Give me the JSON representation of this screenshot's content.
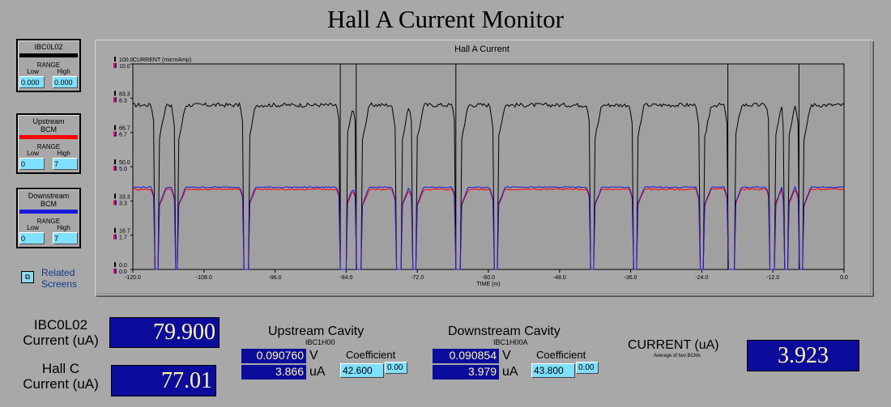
{
  "title": "Hall A Current Monitor",
  "legend": [
    {
      "name": "IBC0L02",
      "color": "#000000",
      "range_label": "RANGE",
      "low_label": "Low",
      "high_label": "High",
      "low": "0.000",
      "high": "0.000"
    },
    {
      "name": "Upstream\nBCM",
      "color": "#ff0000",
      "range_label": "RANGE",
      "low_label": "Low",
      "high_label": "High",
      "low": "0",
      "high": "7"
    },
    {
      "name": "Downstream\nBCM",
      "color": "#1a1adc",
      "range_label": "RANGE",
      "low_label": "Low",
      "high_label": "High",
      "low": "0",
      "high": "7"
    }
  ],
  "related_screens": {
    "icon": "related-screens-icon",
    "label": "Related\nScreens"
  },
  "readouts": {
    "ibc_label": "IBC0L02\nCurrent (uA)",
    "ibc_value": "79.900",
    "hallc_label": "Hall C\nCurrent (uA)",
    "hallc_value": "77.01",
    "upstream": {
      "title": "Upstream Cavity",
      "sub": "IBC1H00",
      "volt": "0.090760",
      "volt_unit": "V",
      "amp": "3.866",
      "amp_unit": "uA",
      "coef_label": "Coefficient",
      "coef": "42.600",
      "offset": "0.00"
    },
    "downstream": {
      "title": "Downstream Cavity",
      "sub": "IBC1H00A",
      "volt": "0.090854",
      "volt_unit": "V",
      "amp": "3.979",
      "amp_unit": "uA",
      "coef_label": "Coefficient",
      "coef": "43.800",
      "offset": "0.00"
    },
    "avg_label": "CURRENT (uA)",
    "avg_sub": "Average of two BCMs",
    "avg_value": "3.923"
  },
  "chart_data": {
    "type": "line",
    "title": "Hall A Current",
    "ylabel": "CURRENT (microAmp)",
    "xlabel": "TIME (m)",
    "xlim": [
      -120,
      0
    ],
    "ylim": [
      0,
      100
    ],
    "y_ticks_black": [
      "0.0",
      "16.7",
      "33.3",
      "50.0",
      "66.7",
      "83.3",
      "100.0"
    ],
    "y_ticks_colored": [
      "0.0",
      "1.7",
      "3.3",
      "5.0",
      "6.7",
      "8.3",
      "10.0"
    ],
    "x_ticks": [
      "-120.0",
      "-108.0",
      "-96.0",
      "-84.0",
      "-72.0",
      "-60.0",
      "-48.0",
      "-36.0",
      "-24.0",
      "-12.0",
      "0.0"
    ],
    "x_tick_values": [
      -120,
      -108,
      -96,
      -84,
      -72,
      -60,
      -48,
      -36,
      -24,
      -12,
      0
    ],
    "trips": [
      {
        "start": -116.3,
        "end": -115.6,
        "spike": false
      },
      {
        "start": -112.9,
        "end": -112.3,
        "spike": false
      },
      {
        "start": -101.3,
        "end": -100.5,
        "spike": false
      },
      {
        "start": -85.0,
        "end": -84.0,
        "spike": true
      },
      {
        "start": -82.3,
        "end": -81.3,
        "spike": true
      },
      {
        "start": -75.7,
        "end": -74.6,
        "spike": false
      },
      {
        "start": -72.8,
        "end": -72.1,
        "spike": false
      },
      {
        "start": -65.5,
        "end": -64.6,
        "spike": true
      },
      {
        "start": -59.2,
        "end": -58.4,
        "spike": false
      },
      {
        "start": -42.8,
        "end": -42.1,
        "spike": false
      },
      {
        "start": -35.6,
        "end": -34.9,
        "spike": false
      },
      {
        "start": -24.4,
        "end": -23.6,
        "spike": false
      },
      {
        "start": -19.6,
        "end": -18.5,
        "spike": true
      },
      {
        "start": -12.5,
        "end": -11.7,
        "spike": false
      },
      {
        "start": -10.2,
        "end": -9.5,
        "spike": false
      },
      {
        "start": -7.6,
        "end": -6.8,
        "spike": true
      }
    ],
    "series": [
      {
        "name": "IBC0L02",
        "color": "#000000",
        "level": 80
      },
      {
        "name": "Upstream BCM",
        "color": "#ff0000",
        "level": 3.9
      },
      {
        "name": "Downstream BCM",
        "color": "#1a1adc",
        "level": 4.0
      }
    ]
  }
}
